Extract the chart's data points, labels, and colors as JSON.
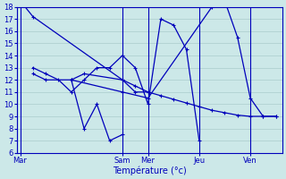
{
  "background_color": "#cce8e8",
  "grid_color": "#aacccc",
  "line_color": "#0000bb",
  "xlabel": "Température (°c)",
  "ylim": [
    6,
    18
  ],
  "ytick_vals": [
    6,
    7,
    8,
    9,
    10,
    11,
    12,
    13,
    14,
    15,
    16,
    17,
    18
  ],
  "x_day_labels": [
    "Mar",
    "Sam",
    "Mer",
    "Jeu",
    "Ven"
  ],
  "x_day_positions": [
    0,
    32,
    40,
    56,
    72
  ],
  "xlim": [
    -1,
    82
  ],
  "vline_positions": [
    0,
    32,
    40,
    56,
    72
  ],
  "series": [
    {
      "x": [
        0,
        4,
        32,
        36,
        40,
        44,
        48,
        52,
        56,
        60,
        64,
        68,
        72,
        76,
        80
      ],
      "y": [
        18.5,
        17.2,
        12.0,
        11.5,
        11.0,
        10.7,
        10.4,
        10.1,
        9.8,
        9.5,
        9.3,
        9.1,
        9.0,
        9.0,
        9.0
      ]
    },
    {
      "x": [
        4,
        8,
        12,
        16,
        20,
        24,
        28,
        32,
        36,
        40,
        44,
        48,
        52,
        56
      ],
      "y": [
        13.0,
        12.5,
        12.0,
        11.0,
        12.0,
        13.0,
        13.0,
        14.0,
        13.0,
        10.0,
        17.0,
        16.5,
        14.5,
        7.0
      ]
    },
    {
      "x": [
        4,
        8,
        16,
        32,
        40,
        60,
        64,
        68,
        72,
        76,
        80
      ],
      "y": [
        12.5,
        12.0,
        12.0,
        11.0,
        10.5,
        18.0,
        18.5,
        15.5,
        10.5,
        9.0,
        9.0
      ]
    },
    {
      "x": [
        16,
        20,
        32,
        36,
        40
      ],
      "y": [
        12.0,
        12.5,
        12.0,
        11.0,
        11.0
      ]
    },
    {
      "x": [
        16,
        20,
        24,
        28,
        32
      ],
      "y": [
        12.0,
        8.0,
        10.0,
        7.0,
        7.5
      ]
    }
  ]
}
